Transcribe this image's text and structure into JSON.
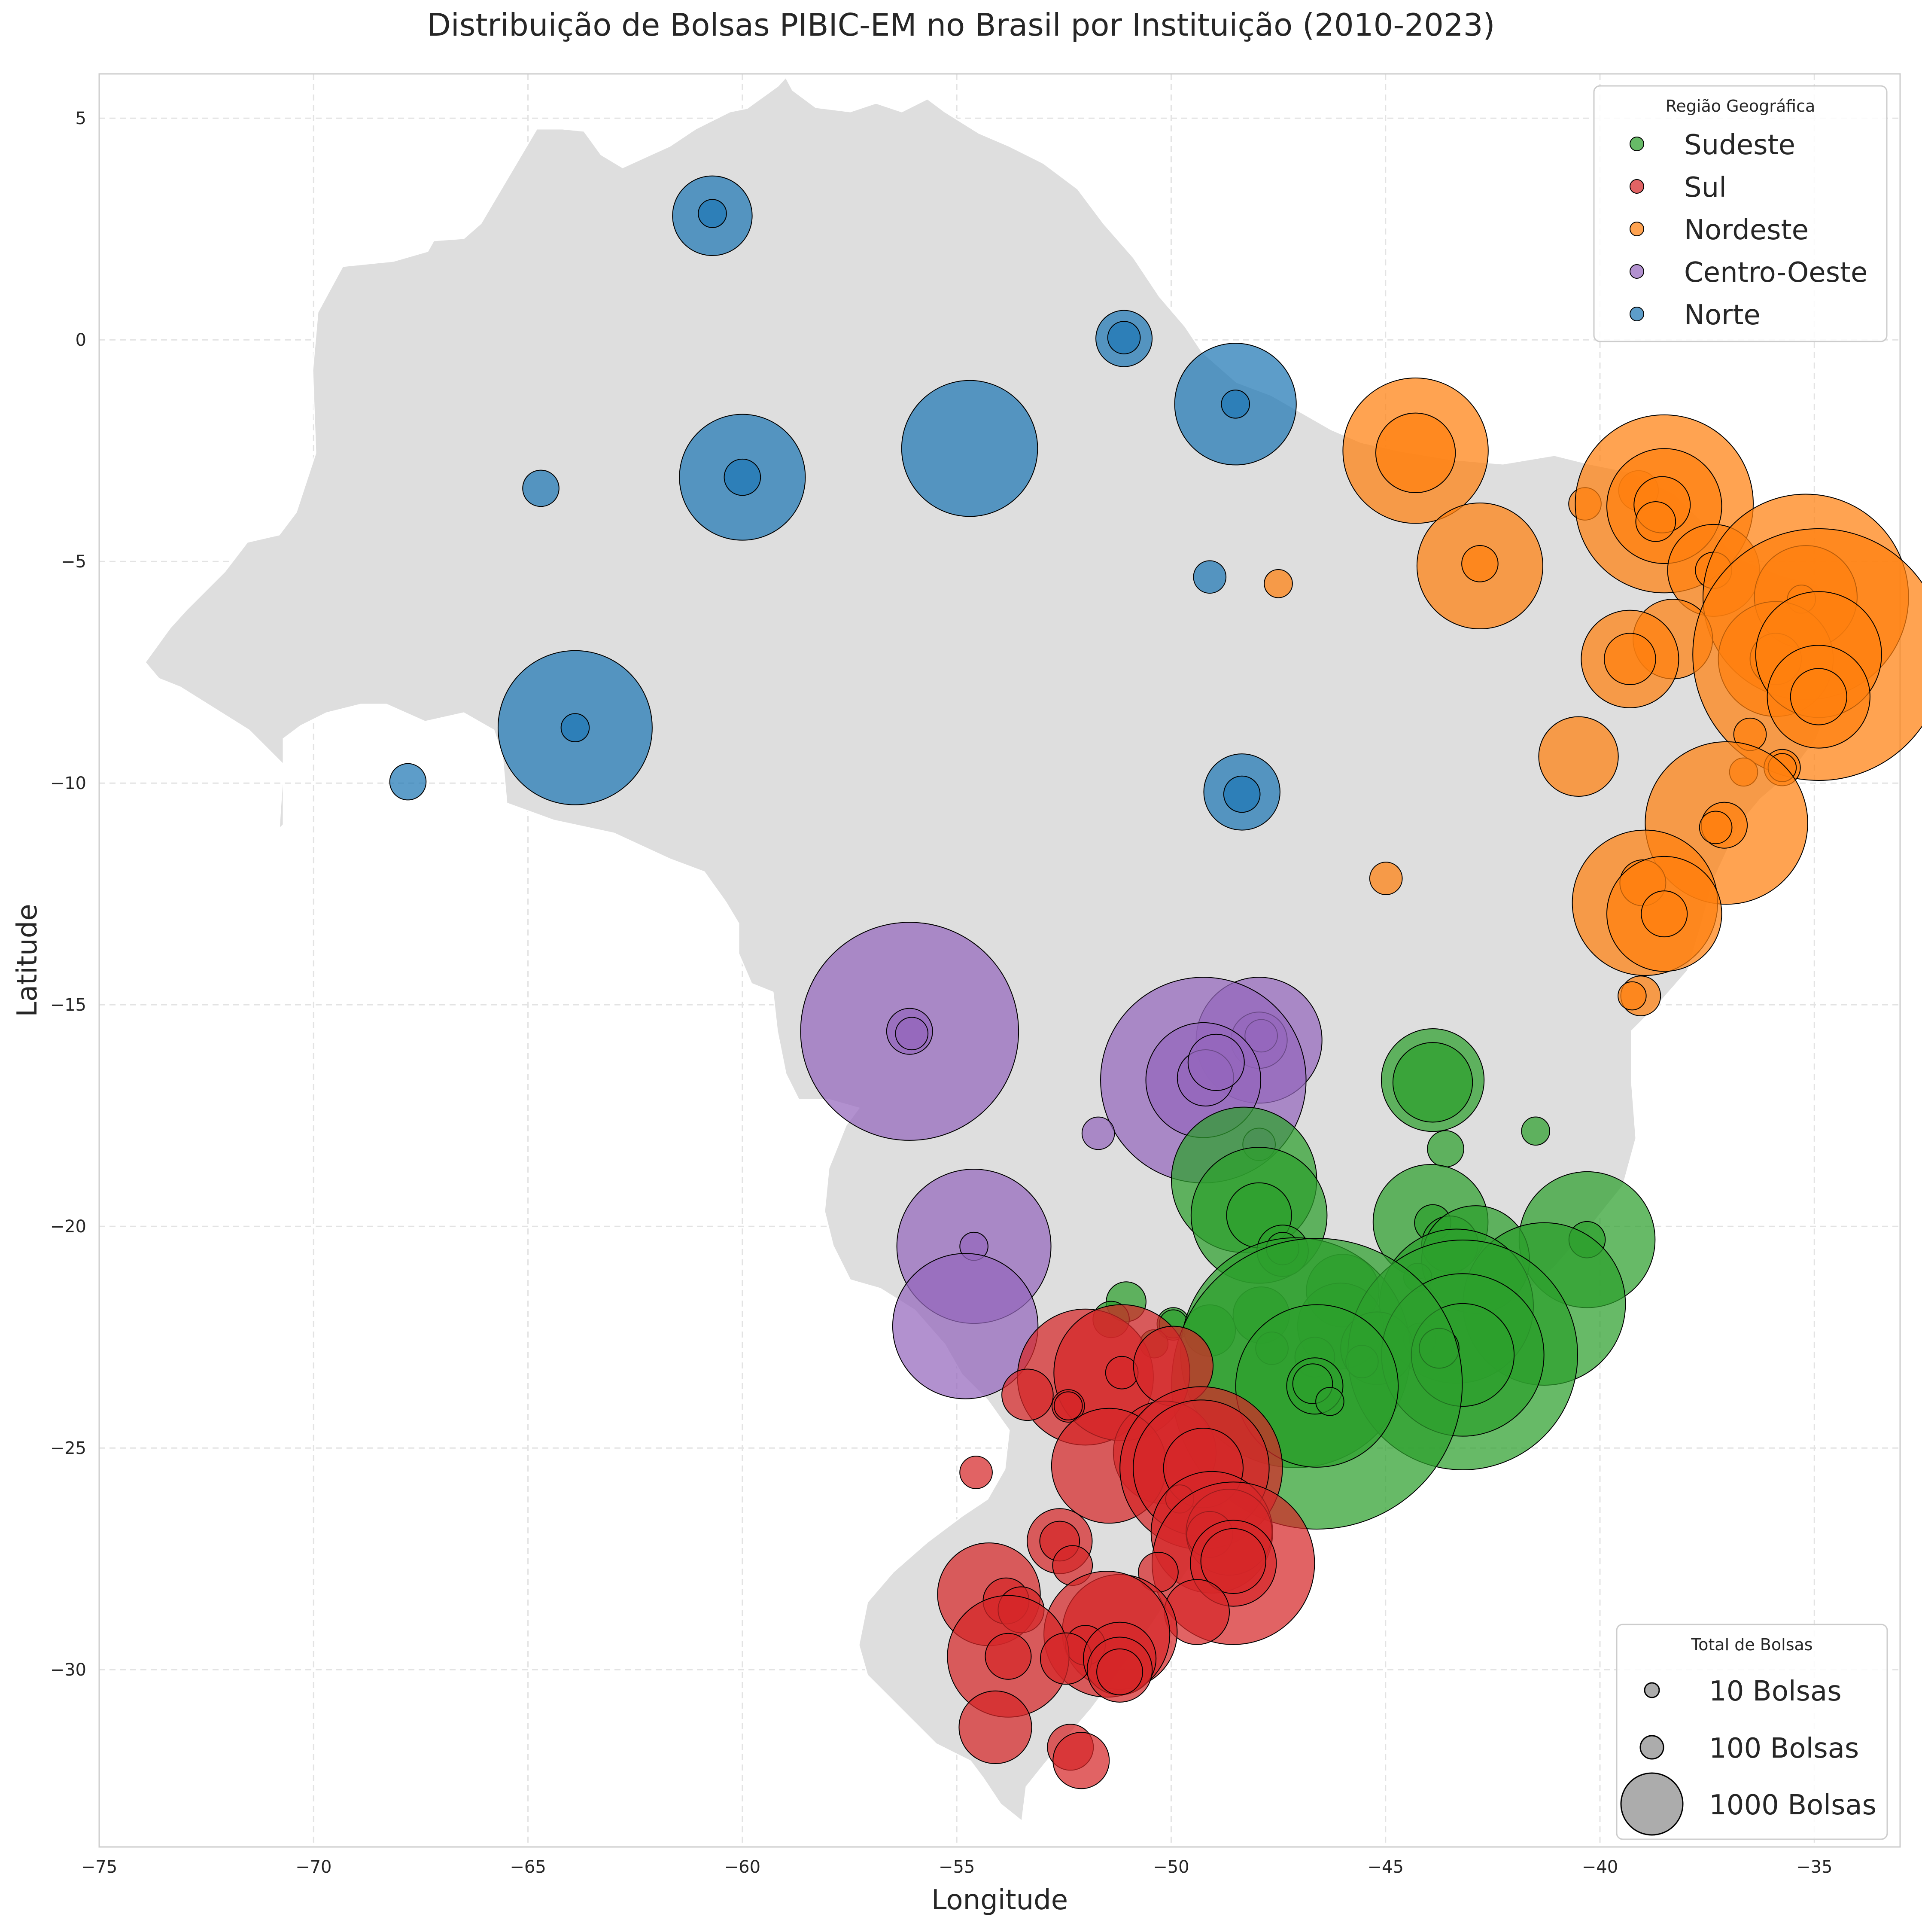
{
  "chart_data": {
    "type": "scatter",
    "title": "Distribuição de Bolsas PIBIC-EM no Brasil por Instituição (2010-2023)",
    "xlabel": "Longitude",
    "ylabel": "Latitude",
    "xlim": [
      -75,
      -33
    ],
    "ylim": [
      -34,
      6
    ],
    "x_ticks": [
      -75,
      -70,
      -65,
      -60,
      -55,
      -50,
      -45,
      -40,
      -35
    ],
    "y_ticks": [
      5,
      0,
      -5,
      -10,
      -15,
      -20,
      -25,
      -30
    ],
    "grid": true,
    "colors": {
      "Sudeste": "#2ca02c",
      "Sul": "#d62728",
      "Nordeste": "#ff7f0e",
      "Centro-Oeste": "#9467bd",
      "Norte": "#1f77b4",
      "map_fill": "#dedede",
      "size_legend": "#9e9e9e"
    },
    "legend_region": {
      "title": "Região Geográfica",
      "placement": "upper-right",
      "entries": [
        "Sudeste",
        "Sul",
        "Nordeste",
        "Centro-Oeste",
        "Norte"
      ]
    },
    "legend_size": {
      "title": "Total de Bolsas",
      "placement": "lower-right",
      "entries": [
        {
          "label": "10 Bolsas",
          "value": 10
        },
        {
          "label": "100 Bolsas",
          "value": 100
        },
        {
          "label": "1000 Bolsas",
          "value": 1000
        }
      ]
    },
    "series": [
      {
        "name": "Norte",
        "points": [
          {
            "lon": -60.7,
            "lat": 2.8,
            "bolsas": 120
          },
          {
            "lon": -60.7,
            "lat": 2.85,
            "bolsas": 15
          },
          {
            "lon": -51.1,
            "lat": 0.03,
            "bolsas": 60
          },
          {
            "lon": -51.1,
            "lat": 0.05,
            "bolsas": 20
          },
          {
            "lon": -48.5,
            "lat": -1.45,
            "bolsas": 280
          },
          {
            "lon": -48.5,
            "lat": -1.45,
            "bolsas": 15
          },
          {
            "lon": -54.7,
            "lat": -2.45,
            "bolsas": 350
          },
          {
            "lon": -60.0,
            "lat": -3.1,
            "bolsas": 300
          },
          {
            "lon": -60.0,
            "lat": -3.1,
            "bolsas": 25
          },
          {
            "lon": -64.7,
            "lat": -3.35,
            "bolsas": 25
          },
          {
            "lon": -49.1,
            "lat": -5.35,
            "bolsas": 20
          },
          {
            "lon": -63.9,
            "lat": -8.75,
            "bolsas": 450
          },
          {
            "lon": -63.9,
            "lat": -8.75,
            "bolsas": 15
          },
          {
            "lon": -67.8,
            "lat": -9.97,
            "bolsas": 25
          },
          {
            "lon": -48.35,
            "lat": -10.2,
            "bolsas": 110
          },
          {
            "lon": -48.35,
            "lat": -10.25,
            "bolsas": 25
          }
        ]
      },
      {
        "name": "Nordeste",
        "points": [
          {
            "lon": -44.3,
            "lat": -2.5,
            "bolsas": 400
          },
          {
            "lon": -44.3,
            "lat": -2.55,
            "bolsas": 120
          },
          {
            "lon": -40.35,
            "lat": -3.7,
            "bolsas": 20
          },
          {
            "lon": -39.1,
            "lat": -3.4,
            "bolsas": 30
          },
          {
            "lon": -38.5,
            "lat": -3.7,
            "bolsas": 600
          },
          {
            "lon": -38.5,
            "lat": -3.75,
            "bolsas": 250
          },
          {
            "lon": -38.55,
            "lat": -3.72,
            "bolsas": 60
          },
          {
            "lon": -38.7,
            "lat": -4.1,
            "bolsas": 30
          },
          {
            "lon": -42.8,
            "lat": -5.1,
            "bolsas": 300
          },
          {
            "lon": -42.8,
            "lat": -5.05,
            "bolsas": 25
          },
          {
            "lon": -37.35,
            "lat": -5.2,
            "bolsas": 160
          },
          {
            "lon": -37.35,
            "lat": -5.2,
            "bolsas": 25
          },
          {
            "lon": -47.5,
            "lat": -5.5,
            "bolsas": 15
          },
          {
            "lon": -35.2,
            "lat": -5.8,
            "bolsas": 800
          },
          {
            "lon": -35.2,
            "lat": -5.8,
            "bolsas": 200
          },
          {
            "lon": -35.3,
            "lat": -5.85,
            "bolsas": 15
          },
          {
            "lon": -38.3,
            "lat": -6.75,
            "bolsas": 120
          },
          {
            "lon": -39.3,
            "lat": -7.2,
            "bolsas": 180
          },
          {
            "lon": -39.3,
            "lat": -7.2,
            "bolsas": 50
          },
          {
            "lon": -35.9,
            "lat": -7.2,
            "bolsas": 250
          },
          {
            "lon": -35.9,
            "lat": -7.2,
            "bolsas": 50
          },
          {
            "lon": -34.9,
            "lat": -7.1,
            "bolsas": 1200
          },
          {
            "lon": -34.9,
            "lat": -7.1,
            "bolsas": 300
          },
          {
            "lon": -34.9,
            "lat": -8.05,
            "bolsas": 200
          },
          {
            "lon": -34.9,
            "lat": -8.05,
            "bolsas": 60
          },
          {
            "lon": -36.5,
            "lat": -8.9,
            "bolsas": 20
          },
          {
            "lon": -40.5,
            "lat": -9.4,
            "bolsas": 120
          },
          {
            "lon": -36.65,
            "lat": -9.75,
            "bolsas": 15
          },
          {
            "lon": -35.75,
            "lat": -9.65,
            "bolsas": 25
          },
          {
            "lon": -35.75,
            "lat": -9.65,
            "bolsas": 15
          },
          {
            "lon": -37.05,
            "lat": -10.9,
            "bolsas": 500
          },
          {
            "lon": -37.1,
            "lat": -10.95,
            "bolsas": 40
          },
          {
            "lon": -37.3,
            "lat": -11.0,
            "bolsas": 20
          },
          {
            "lon": -44.99,
            "lat": -12.15,
            "bolsas": 20
          },
          {
            "lon": -38.95,
            "lat": -12.7,
            "bolsas": 400
          },
          {
            "lon": -39.0,
            "lat": -12.25,
            "bolsas": 40
          },
          {
            "lon": -38.5,
            "lat": -12.95,
            "bolsas": 250
          },
          {
            "lon": -38.5,
            "lat": -12.95,
            "bolsas": 40
          },
          {
            "lon": -39.05,
            "lat": -14.8,
            "bolsas": 30
          },
          {
            "lon": -39.25,
            "lat": -14.8,
            "bolsas": 15
          }
        ]
      },
      {
        "name": "Centro-Oeste",
        "points": [
          {
            "lon": -56.1,
            "lat": -15.6,
            "bolsas": 900
          },
          {
            "lon": -56.1,
            "lat": -15.6,
            "bolsas": 40
          },
          {
            "lon": -56.05,
            "lat": -15.65,
            "bolsas": 20
          },
          {
            "lon": -47.95,
            "lat": -15.8,
            "bolsas": 300
          },
          {
            "lon": -47.95,
            "lat": -15.8,
            "bolsas": 60
          },
          {
            "lon": -47.9,
            "lat": -15.7,
            "bolsas": 20
          },
          {
            "lon": -49.25,
            "lat": -16.7,
            "bolsas": 800
          },
          {
            "lon": -49.25,
            "lat": -16.7,
            "bolsas": 250
          },
          {
            "lon": -49.2,
            "lat": -16.65,
            "bolsas": 60
          },
          {
            "lon": -48.95,
            "lat": -16.3,
            "bolsas": 60
          },
          {
            "lon": -51.7,
            "lat": -17.9,
            "bolsas": 20
          },
          {
            "lon": -47.95,
            "lat": -18.15,
            "bolsas": 20
          },
          {
            "lon": -54.6,
            "lat": -20.45,
            "bolsas": 450
          },
          {
            "lon": -54.6,
            "lat": -20.45,
            "bolsas": 15
          },
          {
            "lon": -54.8,
            "lat": -22.25,
            "bolsas": 400
          }
        ]
      },
      {
        "name": "Sudeste",
        "points": [
          {
            "lon": -43.9,
            "lat": -16.7,
            "bolsas": 200
          },
          {
            "lon": -43.9,
            "lat": -16.75,
            "bolsas": 120
          },
          {
            "lon": -41.5,
            "lat": -17.85,
            "bolsas": 15
          },
          {
            "lon": -43.6,
            "lat": -18.25,
            "bolsas": 25
          },
          {
            "lon": -48.3,
            "lat": -18.95,
            "bolsas": 400
          },
          {
            "lon": -47.95,
            "lat": -19.75,
            "bolsas": 350
          },
          {
            "lon": -47.95,
            "lat": -19.75,
            "bolsas": 80
          },
          {
            "lon": -43.95,
            "lat": -19.9,
            "bolsas": 250
          },
          {
            "lon": -43.9,
            "lat": -19.92,
            "bolsas": 25
          },
          {
            "lon": -43.5,
            "lat": -20.4,
            "bolsas": 60
          },
          {
            "lon": -47.4,
            "lat": -20.55,
            "bolsas": 50
          },
          {
            "lon": -47.4,
            "lat": -20.5,
            "bolsas": 20
          },
          {
            "lon": -40.3,
            "lat": -20.3,
            "bolsas": 350
          },
          {
            "lon": -40.3,
            "lat": -20.3,
            "bolsas": 25
          },
          {
            "lon": -42.9,
            "lat": -20.75,
            "bolsas": 220
          },
          {
            "lon": -44.25,
            "lat": -21.15,
            "bolsas": 15
          },
          {
            "lon": -46.0,
            "lat": -21.45,
            "bolsas": 100
          },
          {
            "lon": -41.3,
            "lat": -21.75,
            "bolsas": 500
          },
          {
            "lon": -43.35,
            "lat": -21.8,
            "bolsas": 450
          },
          {
            "lon": -51.05,
            "lat": -21.7,
            "bolsas": 30
          },
          {
            "lon": -47.9,
            "lat": -22.0,
            "bolsas": 60
          },
          {
            "lon": -51.4,
            "lat": -22.1,
            "bolsas": 25
          },
          {
            "lon": -49.95,
            "lat": -22.2,
            "bolsas": 20
          },
          {
            "lon": -49.95,
            "lat": -22.2,
            "bolsas": 15
          },
          {
            "lon": -46.05,
            "lat": -22.25,
            "bolsas": 140
          },
          {
            "lon": -49.1,
            "lat": -22.35,
            "bolsas": 50
          },
          {
            "lon": -44.2,
            "lat": -22.55,
            "bolsas": 20
          },
          {
            "lon": -50.4,
            "lat": -22.65,
            "bolsas": 15
          },
          {
            "lon": -47.1,
            "lat": -22.85,
            "bolsas": 1000
          },
          {
            "lon": -47.65,
            "lat": -22.75,
            "bolsas": 20
          },
          {
            "lon": -45.2,
            "lat": -22.75,
            "bolsas": 100
          },
          {
            "lon": -43.2,
            "lat": -22.9,
            "bolsas": 1000
          },
          {
            "lon": -43.2,
            "lat": -22.9,
            "bolsas": 500
          },
          {
            "lon": -43.2,
            "lat": -22.9,
            "bolsas": 200
          },
          {
            "lon": -43.75,
            "lat": -22.75,
            "bolsas": 30
          },
          {
            "lon": -46.65,
            "lat": -22.95,
            "bolsas": 30
          },
          {
            "lon": -45.55,
            "lat": -23.05,
            "bolsas": 20
          },
          {
            "lon": -46.6,
            "lat": -23.55,
            "bolsas": 1600
          },
          {
            "lon": -46.6,
            "lat": -23.6,
            "bolsas": 500
          },
          {
            "lon": -46.65,
            "lat": -23.6,
            "bolsas": 60
          },
          {
            "lon": -46.7,
            "lat": -23.55,
            "bolsas": 30
          },
          {
            "lon": -46.3,
            "lat": -23.95,
            "bolsas": 15
          }
        ]
      },
      {
        "name": "Sul",
        "points": [
          {
            "lon": -52.0,
            "lat": -23.4,
            "bolsas": 350
          },
          {
            "lon": -51.15,
            "lat": -23.3,
            "bolsas": 350
          },
          {
            "lon": -51.15,
            "lat": -23.3,
            "bolsas": 20
          },
          {
            "lon": -49.95,
            "lat": -23.15,
            "bolsas": 120
          },
          {
            "lon": -53.35,
            "lat": -23.8,
            "bolsas": 50
          },
          {
            "lon": -52.4,
            "lat": -24.05,
            "bolsas": 20
          },
          {
            "lon": -52.4,
            "lat": -24.05,
            "bolsas": 15
          },
          {
            "lon": -50.15,
            "lat": -25.1,
            "bolsas": 200
          },
          {
            "lon": -51.45,
            "lat": -25.4,
            "bolsas": 250
          },
          {
            "lon": -49.3,
            "lat": -25.45,
            "bolsas": 500
          },
          {
            "lon": -49.3,
            "lat": -25.45,
            "bolsas": 350
          },
          {
            "lon": -49.25,
            "lat": -25.45,
            "bolsas": 120
          },
          {
            "lon": -54.55,
            "lat": -25.55,
            "bolsas": 20
          },
          {
            "lon": -49.8,
            "lat": -26.15,
            "bolsas": 15
          },
          {
            "lon": -49.05,
            "lat": -26.9,
            "bolsas": 280
          },
          {
            "lon": -48.65,
            "lat": -26.9,
            "bolsas": 140
          },
          {
            "lon": -49.1,
            "lat": -26.95,
            "bolsas": 40
          },
          {
            "lon": -52.6,
            "lat": -27.1,
            "bolsas": 80
          },
          {
            "lon": -52.6,
            "lat": -27.1,
            "bolsas": 30
          },
          {
            "lon": -52.3,
            "lat": -27.65,
            "bolsas": 30
          },
          {
            "lon": -48.55,
            "lat": -27.6,
            "bolsas": 500
          },
          {
            "lon": -48.55,
            "lat": -27.6,
            "bolsas": 140
          },
          {
            "lon": -48.55,
            "lat": -27.55,
            "bolsas": 80
          },
          {
            "lon": -50.3,
            "lat": -27.8,
            "bolsas": 30
          },
          {
            "lon": -54.25,
            "lat": -28.3,
            "bolsas": 200
          },
          {
            "lon": -53.85,
            "lat": -28.45,
            "bolsas": 40
          },
          {
            "lon": -53.5,
            "lat": -28.65,
            "bolsas": 40
          },
          {
            "lon": -49.4,
            "lat": -28.7,
            "bolsas": 80
          },
          {
            "lon": -51.2,
            "lat": -29.15,
            "bolsas": 250
          },
          {
            "lon": -51.5,
            "lat": -29.2,
            "bolsas": 300
          },
          {
            "lon": -52.0,
            "lat": -29.45,
            "bolsas": 30
          },
          {
            "lon": -53.8,
            "lat": -29.7,
            "bolsas": 280
          },
          {
            "lon": -53.8,
            "lat": -29.7,
            "bolsas": 40
          },
          {
            "lon": -52.45,
            "lat": -29.75,
            "bolsas": 50
          },
          {
            "lon": -51.2,
            "lat": -29.75,
            "bolsas": 100
          },
          {
            "lon": -51.2,
            "lat": -30.0,
            "bolsas": 80
          },
          {
            "lon": -51.2,
            "lat": -30.05,
            "bolsas": 40
          },
          {
            "lon": -54.1,
            "lat": -31.3,
            "bolsas": 100
          },
          {
            "lon": -52.35,
            "lat": -31.75,
            "bolsas": 40
          },
          {
            "lon": -52.1,
            "lat": -32.05,
            "bolsas": 60
          }
        ]
      }
    ]
  }
}
